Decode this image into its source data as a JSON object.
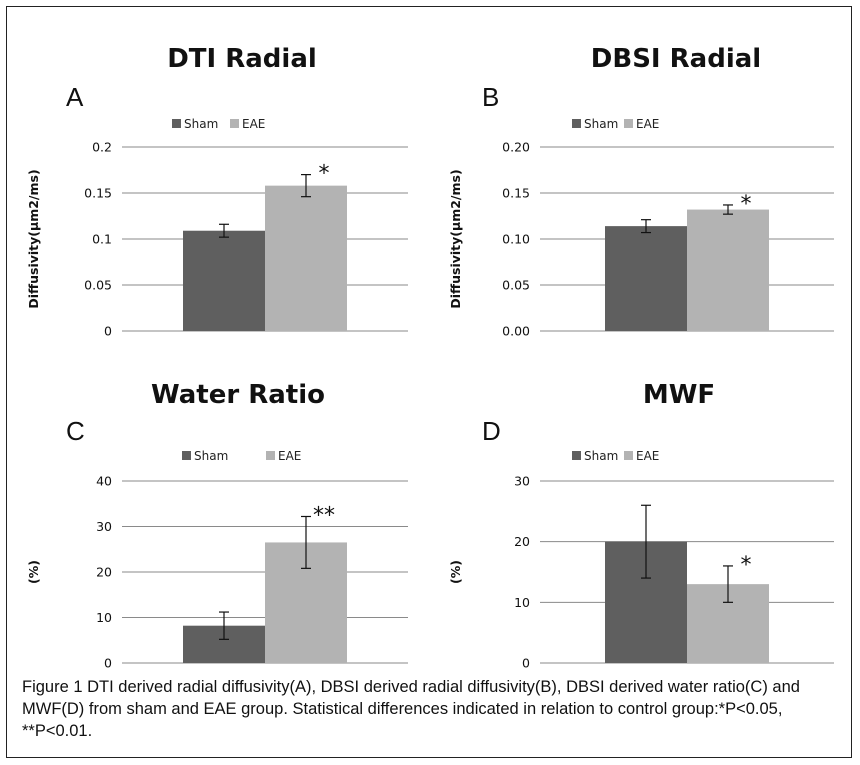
{
  "colors": {
    "sham": "#5f5f5f",
    "eae": "#b3b3b3"
  },
  "chart_data": [
    {
      "type": "bar",
      "panel": "A",
      "title": "DTI Radial",
      "ylabel": "Diffusivity(µm2/ms)",
      "ylim": [
        0,
        0.2
      ],
      "yticks": [
        "0",
        "0.05",
        "0.1",
        "0.15",
        "0.2"
      ],
      "grid": true,
      "legend_position": "top",
      "series": [
        {
          "name": "Sham",
          "values": [
            0.109
          ],
          "error": [
            0.007
          ]
        },
        {
          "name": "EAE",
          "values": [
            0.158
          ],
          "error": [
            0.012
          ]
        }
      ],
      "annotations": [
        {
          "series": "EAE",
          "text": "*"
        }
      ]
    },
    {
      "type": "bar",
      "panel": "B",
      "title": "DBSI Radial",
      "ylabel": "Diffusivity(µm2/ms)",
      "ylim": [
        0,
        0.2
      ],
      "yticks": [
        "0.00",
        "0.05",
        "0.10",
        "0.15",
        "0.20"
      ],
      "grid": true,
      "legend_position": "top",
      "series": [
        {
          "name": "Sham",
          "values": [
            0.114
          ],
          "error": [
            0.007
          ]
        },
        {
          "name": "EAE",
          "values": [
            0.132
          ],
          "error": [
            0.005
          ]
        }
      ],
      "annotations": [
        {
          "series": "EAE",
          "text": "*"
        }
      ]
    },
    {
      "type": "bar",
      "panel": "C",
      "title": "Water Ratio",
      "ylabel": "(%)",
      "ylim": [
        0,
        40
      ],
      "yticks": [
        "0",
        "10",
        "20",
        "30",
        "40"
      ],
      "grid": true,
      "legend_position": "top",
      "series": [
        {
          "name": "Sham",
          "values": [
            8.2
          ],
          "error": [
            3.0
          ]
        },
        {
          "name": "EAE",
          "values": [
            26.5
          ],
          "error": [
            5.7
          ]
        }
      ],
      "annotations": [
        {
          "series": "EAE",
          "text": "**"
        }
      ]
    },
    {
      "type": "bar",
      "panel": "D",
      "title": "MWF",
      "ylabel": "(%)",
      "ylim": [
        0,
        30
      ],
      "yticks": [
        "0",
        "10",
        "20",
        "30"
      ],
      "grid": true,
      "legend_position": "top",
      "series": [
        {
          "name": "Sham",
          "values": [
            20.0
          ],
          "error": [
            6.0
          ]
        },
        {
          "name": "EAE",
          "values": [
            13.0
          ],
          "error": [
            3.0
          ]
        }
      ],
      "annotations": [
        {
          "series": "EAE",
          "text": "*"
        }
      ]
    }
  ],
  "caption": "Figure 1  DTI derived radial diffusivity(A), DBSI derived radial diffusivity(B), DBSI derived water ratio(C) and MWF(D) from sham and EAE group. Statistical differences indicated in relation to control group:*P<0.05, **P<0.01."
}
